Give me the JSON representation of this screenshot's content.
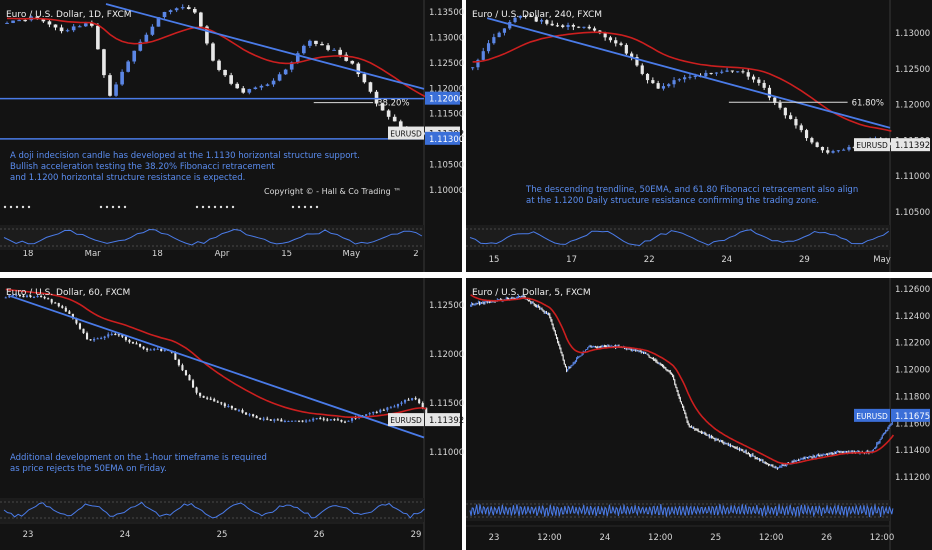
{
  "chart_data": [
    {
      "type": "candlestick",
      "title": "Euro / U.S. Dollar, 1D, FXCM",
      "symbol_label": "EURUSD",
      "y_ticks": [
        "1.13500",
        "1.13000",
        "1.12500",
        "1.12000",
        "1.11500",
        "1.11000",
        "1.10500",
        "1.10000"
      ],
      "ylim": [
        1.0985,
        1.1372
      ],
      "x_ticks": [
        "18",
        "Mar",
        "18",
        "Apr",
        "15",
        "May",
        "2"
      ],
      "price_badges": [
        {
          "text": "1.12000",
          "value": 1.12,
          "style": "blue"
        },
        {
          "text": "1.11392",
          "value": 1.11392,
          "style": "dark"
        },
        {
          "text": "1.11300",
          "value": 1.113,
          "style": "blue"
        }
      ],
      "horizontal_levels": [
        1.12,
        1.113
      ],
      "fib_label": "38.20%",
      "fib_level": 1.1193,
      "trendline": {
        "start_price": 1.1365,
        "end_price": 1.1217
      },
      "ema_color": "#cc1f1f",
      "candle_up_color": "#5b86e5",
      "candle_down_color": "#e8e8e8",
      "annotation": [
        "A doji indecision candle has developed at the 1.1130 horizontal structure support.",
        "Bullish acceleration testing the 38.20% Fibonacci retracement",
        "and 1.1200 horizontal structure resistance is expected."
      ],
      "copyright": "Copyright © - Hall & Co Trading ™",
      "close": 1.11392
    },
    {
      "type": "candlestick",
      "title": "Euro / U.S. Dollar, 240, FXCM",
      "symbol_label": "EURUSD",
      "y_ticks": [
        "1.13000",
        "1.12500",
        "1.12000",
        "1.11500",
        "1.11000",
        "1.10500"
      ],
      "ylim": [
        1.1025,
        1.1355
      ],
      "x_ticks": [
        "15",
        "17",
        "22",
        "24",
        "29",
        "May"
      ],
      "price_badges": [
        {
          "text": "1.11392",
          "value": 1.11392,
          "style": "dark"
        }
      ],
      "fib_label": "61.80%",
      "fib_level": 1.1203,
      "trendline": {
        "start_price": 1.1328,
        "end_price": 1.1165
      },
      "ema_color": "#cc1f1f",
      "annotation": [
        "The descending trendline, 50EMA, and 61.80 Fibonacci retracement also align",
        "at the 1.1200 Daily structure resistance confirming the trading zone."
      ],
      "close": 1.11392
    },
    {
      "type": "candlestick",
      "title": "Euro / U.S. Dollar, 60, FXCM",
      "symbol_label": "EURUSD",
      "y_ticks": [
        "1.12500",
        "1.12000",
        "1.11500",
        "1.11000"
      ],
      "ylim": [
        1.1065,
        1.128
      ],
      "x_ticks": [
        "23",
        "24",
        "25",
        "26",
        "29"
      ],
      "price_badges": [
        {
          "text": "1.11392",
          "value": 1.11392,
          "style": "dark"
        }
      ],
      "trendline": {
        "start_price": 1.1262,
        "end_price": 1.1122
      },
      "ema_color": "#cc1f1f",
      "annotation": [
        "Additional development on the 1-hour timeframe is required",
        "as price rejects the 50EMA on Friday."
      ],
      "close": 1.11392
    },
    {
      "type": "candlestick",
      "title": "Euro / U.S. Dollar, 5, FXCM",
      "symbol_label": "EURUSD",
      "y_ticks": [
        "1.12600",
        "1.12400",
        "1.12200",
        "1.12000",
        "1.11800",
        "1.11600",
        "1.11400",
        "1.11200"
      ],
      "ylim": [
        1.1106,
        1.1272
      ],
      "x_ticks": [
        "23",
        "12:00",
        "24",
        "12:00",
        "25",
        "12:00",
        "26",
        "12:00"
      ],
      "price_badges": [
        {
          "text": "1.11675",
          "value": 1.11675,
          "style": "blue"
        }
      ],
      "ema_color": "#cc1f1f",
      "annotation": [],
      "close": 1.11675
    }
  ]
}
